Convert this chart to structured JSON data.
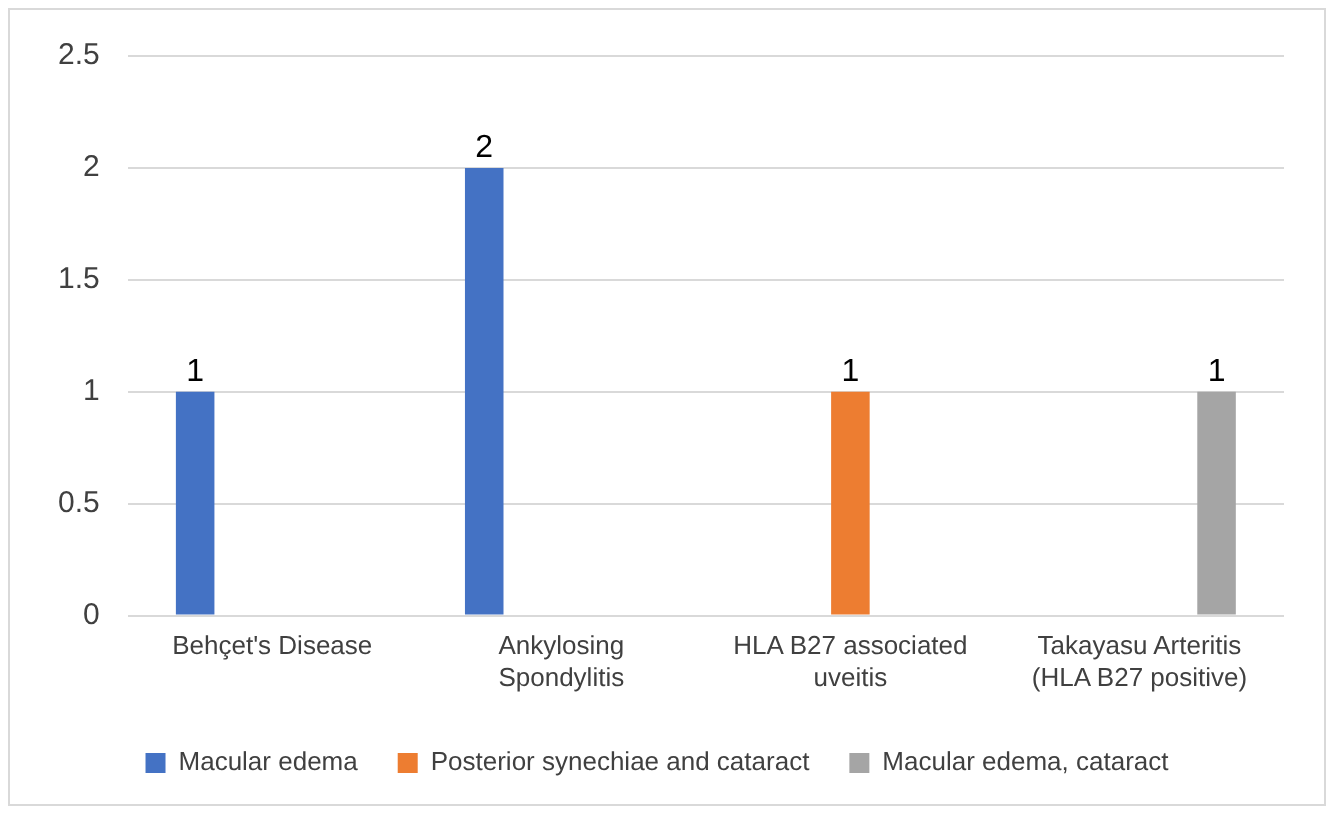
{
  "chart_data": {
    "type": "bar",
    "categories": [
      "Behçet's Disease",
      "Ankylosing Spondylitis",
      "HLA B27 associated uveitis",
      "Takayasu Arteritis (HLA B27 positive)"
    ],
    "series": [
      {
        "name": "Macular edema",
        "color": "#4472c4",
        "values": [
          1,
          2,
          null,
          null
        ]
      },
      {
        "name": "Posterior synechiae and cataract",
        "color": "#ed7d31",
        "values": [
          null,
          null,
          1,
          null
        ]
      },
      {
        "name": "Macular edema, cataract",
        "color": "#a5a5a5",
        "values": [
          null,
          null,
          null,
          1
        ]
      }
    ],
    "ylim": [
      0,
      2.5
    ],
    "yticks": [
      0,
      0.5,
      1,
      1.5,
      2,
      2.5
    ],
    "grid": "y",
    "legend": "bottom",
    "data_labels": true
  }
}
